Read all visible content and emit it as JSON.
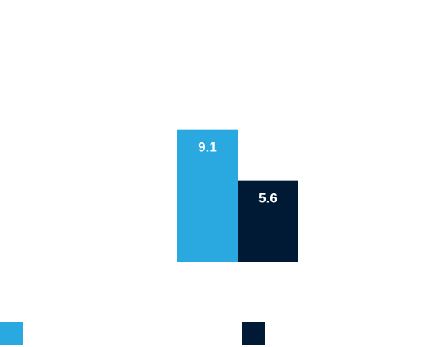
{
  "chart_data": {
    "type": "bar",
    "categories": [
      ""
    ],
    "series": [
      {
        "values": [
          9.1
        ],
        "color": "#29a9e0"
      },
      {
        "values": [
          5.6
        ],
        "color": "#001a35"
      }
    ],
    "data_labels": [
      "9.1",
      "5.6"
    ],
    "title": "",
    "xlabel": "",
    "ylabel": "",
    "ylim": [
      0,
      18
    ],
    "grid": false,
    "legend": "bottom"
  }
}
